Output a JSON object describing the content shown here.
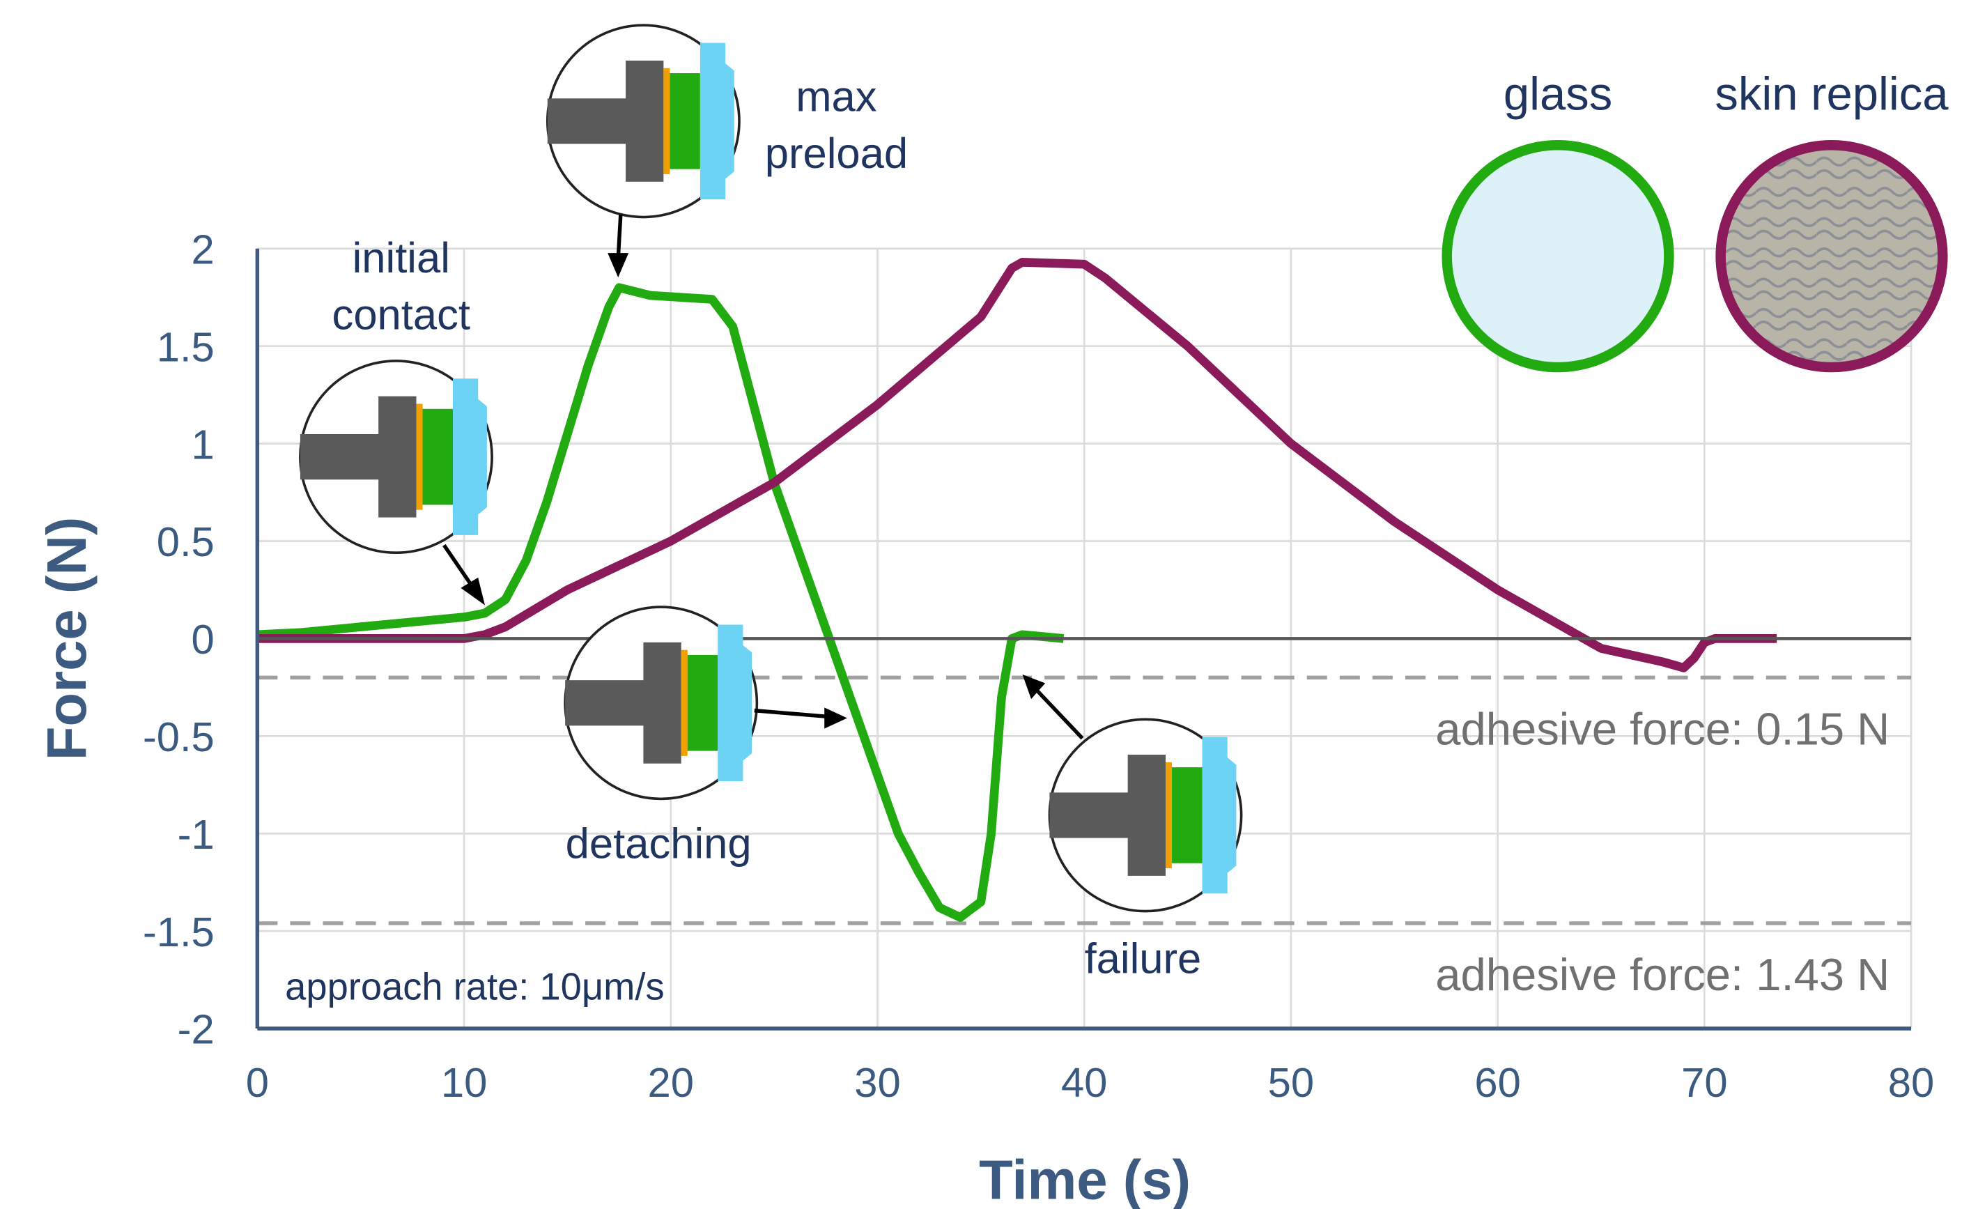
{
  "chart_data": {
    "type": "line",
    "xlabel": "Time (s)",
    "ylabel": "Force (N)",
    "xlim": [
      0,
      80
    ],
    "ylim": [
      -2,
      2
    ],
    "xticks": [
      0,
      10,
      20,
      30,
      40,
      50,
      60,
      70,
      80
    ],
    "yticks": [
      -2,
      -1.5,
      -1,
      -0.5,
      0,
      0.5,
      1,
      1.5,
      2
    ],
    "grid": true,
    "series": [
      {
        "name": "glass",
        "color": "#22aa11",
        "x": [
          0,
          2,
          5,
          8,
          10,
          11,
          12,
          13,
          14,
          15,
          16,
          17,
          17.5,
          19,
          22,
          23,
          24,
          25,
          26,
          27,
          28,
          29,
          30,
          31,
          32,
          33,
          34,
          35,
          35.5,
          36,
          36.5,
          37,
          39
        ],
        "values": [
          0.02,
          0.03,
          0.06,
          0.09,
          0.11,
          0.13,
          0.2,
          0.4,
          0.7,
          1.05,
          1.4,
          1.7,
          1.8,
          1.76,
          1.74,
          1.6,
          1.2,
          0.8,
          0.5,
          0.2,
          -0.1,
          -0.4,
          -0.7,
          -1.0,
          -1.2,
          -1.38,
          -1.43,
          -1.35,
          -1.0,
          -0.3,
          0.0,
          0.02,
          0.0
        ]
      },
      {
        "name": "skin replica",
        "color": "#8b1a5a",
        "x": [
          0,
          10,
          11,
          12,
          15,
          18,
          20,
          25,
          30,
          35,
          36.5,
          37,
          40,
          41,
          45,
          50,
          55,
          60,
          65,
          68,
          69,
          69.5,
          70,
          70.5,
          73.5
        ],
        "values": [
          0,
          0,
          0.02,
          0.06,
          0.25,
          0.4,
          0.5,
          0.8,
          1.2,
          1.65,
          1.9,
          1.93,
          1.92,
          1.85,
          1.5,
          1.0,
          0.6,
          0.25,
          -0.05,
          -0.12,
          -0.15,
          -0.1,
          -0.02,
          0,
          0
        ]
      }
    ],
    "reference_lines": [
      {
        "value": -0.2,
        "label": "adhesive force: 0.15 N"
      },
      {
        "value": -1.46,
        "label": "adhesive force: 1.43 N"
      }
    ],
    "annotations": {
      "initial_contact": [
        "initial",
        "contact"
      ],
      "max_preload": [
        "max",
        "preload"
      ],
      "detaching": "detaching",
      "failure": "failure",
      "approach_rate": "approach rate: 10μm/s"
    }
  }
}
